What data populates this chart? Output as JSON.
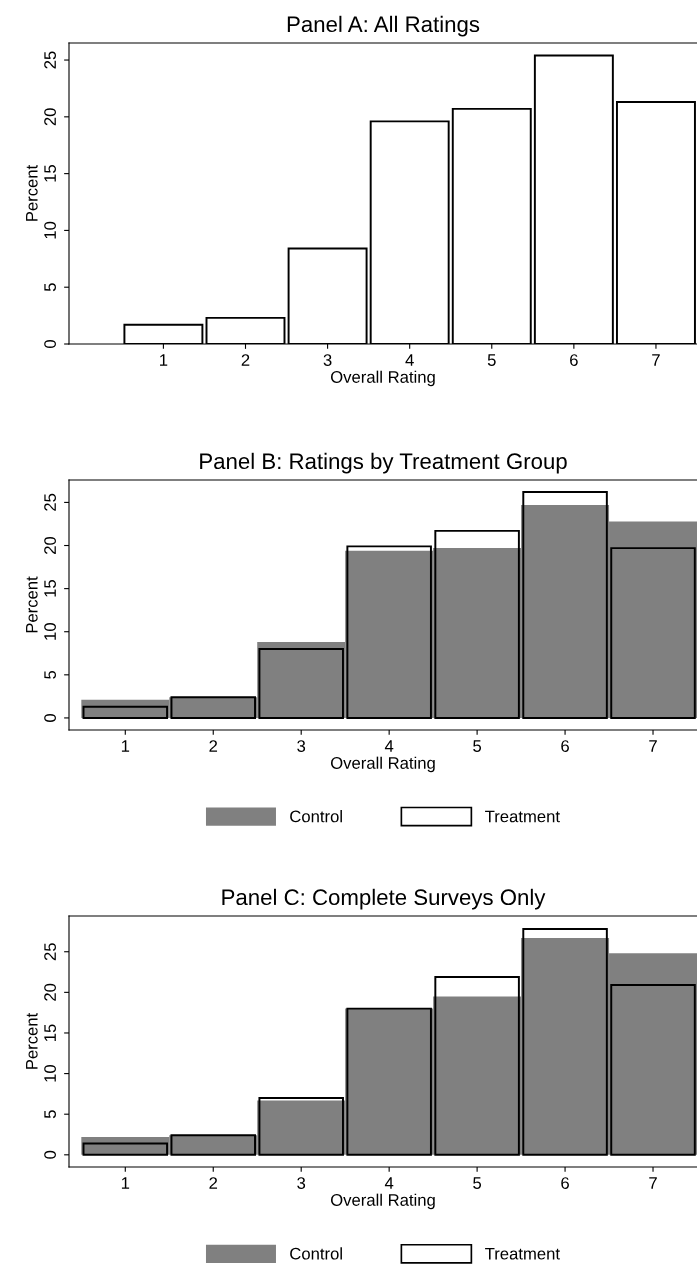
{
  "chart_data": [
    {
      "type": "histogram",
      "title": "Panel A: All Ratings",
      "xlabel": "Overall Rating",
      "ylabel": "Percent",
      "bins": [
        0.5,
        1.5,
        2.5,
        3.5,
        4.5,
        5.5,
        6.5,
        7.5
      ],
      "values": [
        1.7,
        2.3,
        8.4,
        19.6,
        20.7,
        25.4,
        21.3
      ],
      "color": "#000000",
      "xlim": [
        -0.15,
        7.5
      ],
      "ylim": [
        0,
        26.5
      ],
      "xticks": [
        1,
        2,
        3,
        4,
        5,
        6,
        7
      ],
      "yticks": [
        0,
        5,
        10,
        15,
        20,
        25
      ],
      "grid": false,
      "legend": false
    },
    {
      "type": "histogram",
      "title": "Panel B: Ratings by Treatment Group",
      "xlabel": "Overall Rating",
      "ylabel": "Percent",
      "bins": [
        0.5,
        1.5,
        2.5,
        3.5,
        4.5,
        5.5,
        6.5,
        7.5
      ],
      "series": [
        {
          "name": "Control",
          "color": "#808080",
          "values": [
            2.1,
            2.4,
            8.8,
            19.4,
            19.7,
            24.7,
            22.8
          ]
        },
        {
          "name": "Treatment",
          "color": "#000000",
          "values": [
            1.3,
            2.4,
            8.0,
            19.9,
            21.7,
            26.2,
            19.7
          ]
        }
      ],
      "xlim": [
        0.36,
        7.5
      ],
      "ylim": [
        -1.4,
        27.6
      ],
      "xticks": [
        1,
        2,
        3,
        4,
        5,
        6,
        7
      ],
      "yticks": [
        0,
        5,
        10,
        15,
        20,
        25
      ],
      "grid": false,
      "legend": "bottom"
    },
    {
      "type": "histogram",
      "title": "Panel C: Complete Surveys Only",
      "xlabel": "Overall Rating",
      "ylabel": "Percent",
      "bins": [
        0.5,
        1.5,
        2.5,
        3.5,
        4.5,
        5.5,
        6.5,
        7.5
      ],
      "series": [
        {
          "name": "Control",
          "color": "#808080",
          "values": [
            2.2,
            2.4,
            6.7,
            18.0,
            19.5,
            26.7,
            24.8
          ]
        },
        {
          "name": "Treatment",
          "color": "#000000",
          "values": [
            1.4,
            2.4,
            7.0,
            18.0,
            21.9,
            27.8,
            20.9
          ]
        }
      ],
      "xlim": [
        0.36,
        7.5
      ],
      "ylim": [
        -1.5,
        29.4
      ],
      "xticks": [
        1,
        2,
        3,
        4,
        5,
        6,
        7
      ],
      "yticks": [
        0,
        5,
        10,
        15,
        20,
        25
      ],
      "grid": false,
      "legend": "bottom"
    }
  ]
}
